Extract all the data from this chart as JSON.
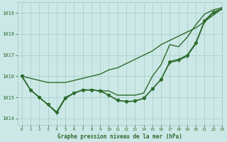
{
  "title": "Graphe pression niveau de la mer (hPa)",
  "background_color": "#cce8e6",
  "grid_color": "#aacfcc",
  "line_color": "#2d6b2d",
  "xlim": [
    -0.5,
    23
  ],
  "ylim": [
    1013.7,
    1019.5
  ],
  "yticks": [
    1014,
    1015,
    1016,
    1017,
    1018,
    1019
  ],
  "xticks": [
    0,
    1,
    2,
    3,
    4,
    5,
    6,
    7,
    8,
    9,
    10,
    11,
    12,
    13,
    14,
    15,
    16,
    17,
    18,
    19,
    20,
    21,
    22,
    23
  ],
  "series": [
    {
      "x": [
        0,
        1,
        2,
        3,
        4,
        5,
        6,
        7,
        8,
        9,
        10,
        11,
        12,
        13,
        14,
        15,
        16,
        17,
        18,
        19,
        20,
        21,
        22,
        23
      ],
      "y": [
        1016.0,
        1015.9,
        1015.8,
        1015.7,
        1015.7,
        1015.7,
        1015.8,
        1015.9,
        1016.0,
        1016.1,
        1016.3,
        1016.4,
        1016.6,
        1016.8,
        1017.0,
        1017.2,
        1017.5,
        1017.7,
        1017.9,
        1018.1,
        1018.3,
        1018.6,
        1018.9,
        1019.2
      ],
      "marker": null,
      "markersize": 0,
      "linewidth": 1.0
    },
    {
      "x": [
        0,
        1,
        2,
        3,
        4,
        5,
        6,
        7,
        8,
        9,
        10,
        11,
        12,
        13,
        14,
        15,
        16,
        17,
        18,
        19,
        20,
        21,
        22,
        23
      ],
      "y": [
        1016.0,
        1015.35,
        1015.0,
        1014.65,
        1014.3,
        1014.95,
        1015.2,
        1015.35,
        1015.35,
        1015.3,
        1015.1,
        1014.85,
        1014.8,
        1014.82,
        1014.95,
        1015.4,
        1015.85,
        1016.7,
        1016.8,
        1017.0,
        1017.6,
        1018.65,
        1019.05,
        1019.2
      ],
      "marker": "D",
      "markersize": 2.5,
      "linewidth": 1.0
    },
    {
      "x": [
        0,
        1,
        2,
        3,
        4,
        5,
        6,
        7,
        8,
        9,
        10,
        11,
        12,
        13,
        14,
        15,
        16,
        17,
        18,
        19,
        20,
        21,
        22,
        23
      ],
      "y": [
        1016.0,
        1015.35,
        1015.0,
        1014.65,
        1014.3,
        1015.0,
        1015.2,
        1015.35,
        1015.35,
        1015.3,
        1015.3,
        1015.1,
        1015.1,
        1015.1,
        1015.2,
        1016.0,
        1016.55,
        1017.5,
        1017.4,
        1017.85,
        1018.45,
        1018.95,
        1019.15,
        1019.25
      ],
      "marker": null,
      "markersize": 0,
      "linewidth": 1.0
    },
    {
      "x": [
        0,
        1,
        2,
        3,
        4,
        5,
        6,
        7,
        8,
        9,
        10,
        11,
        12,
        13,
        14,
        15,
        16,
        17,
        18,
        19,
        20,
        21,
        22,
        23
      ],
      "y": [
        1016.0,
        1015.35,
        1015.0,
        1014.65,
        1014.25,
        1014.95,
        1015.2,
        1015.35,
        1015.35,
        1015.3,
        1015.1,
        1014.85,
        1014.8,
        1014.82,
        1014.95,
        1015.4,
        1015.85,
        1016.65,
        1016.75,
        1016.95,
        1017.55,
        1018.6,
        1019.0,
        1019.2
      ],
      "marker": "v",
      "markersize": 3.0,
      "linewidth": 1.0
    }
  ]
}
